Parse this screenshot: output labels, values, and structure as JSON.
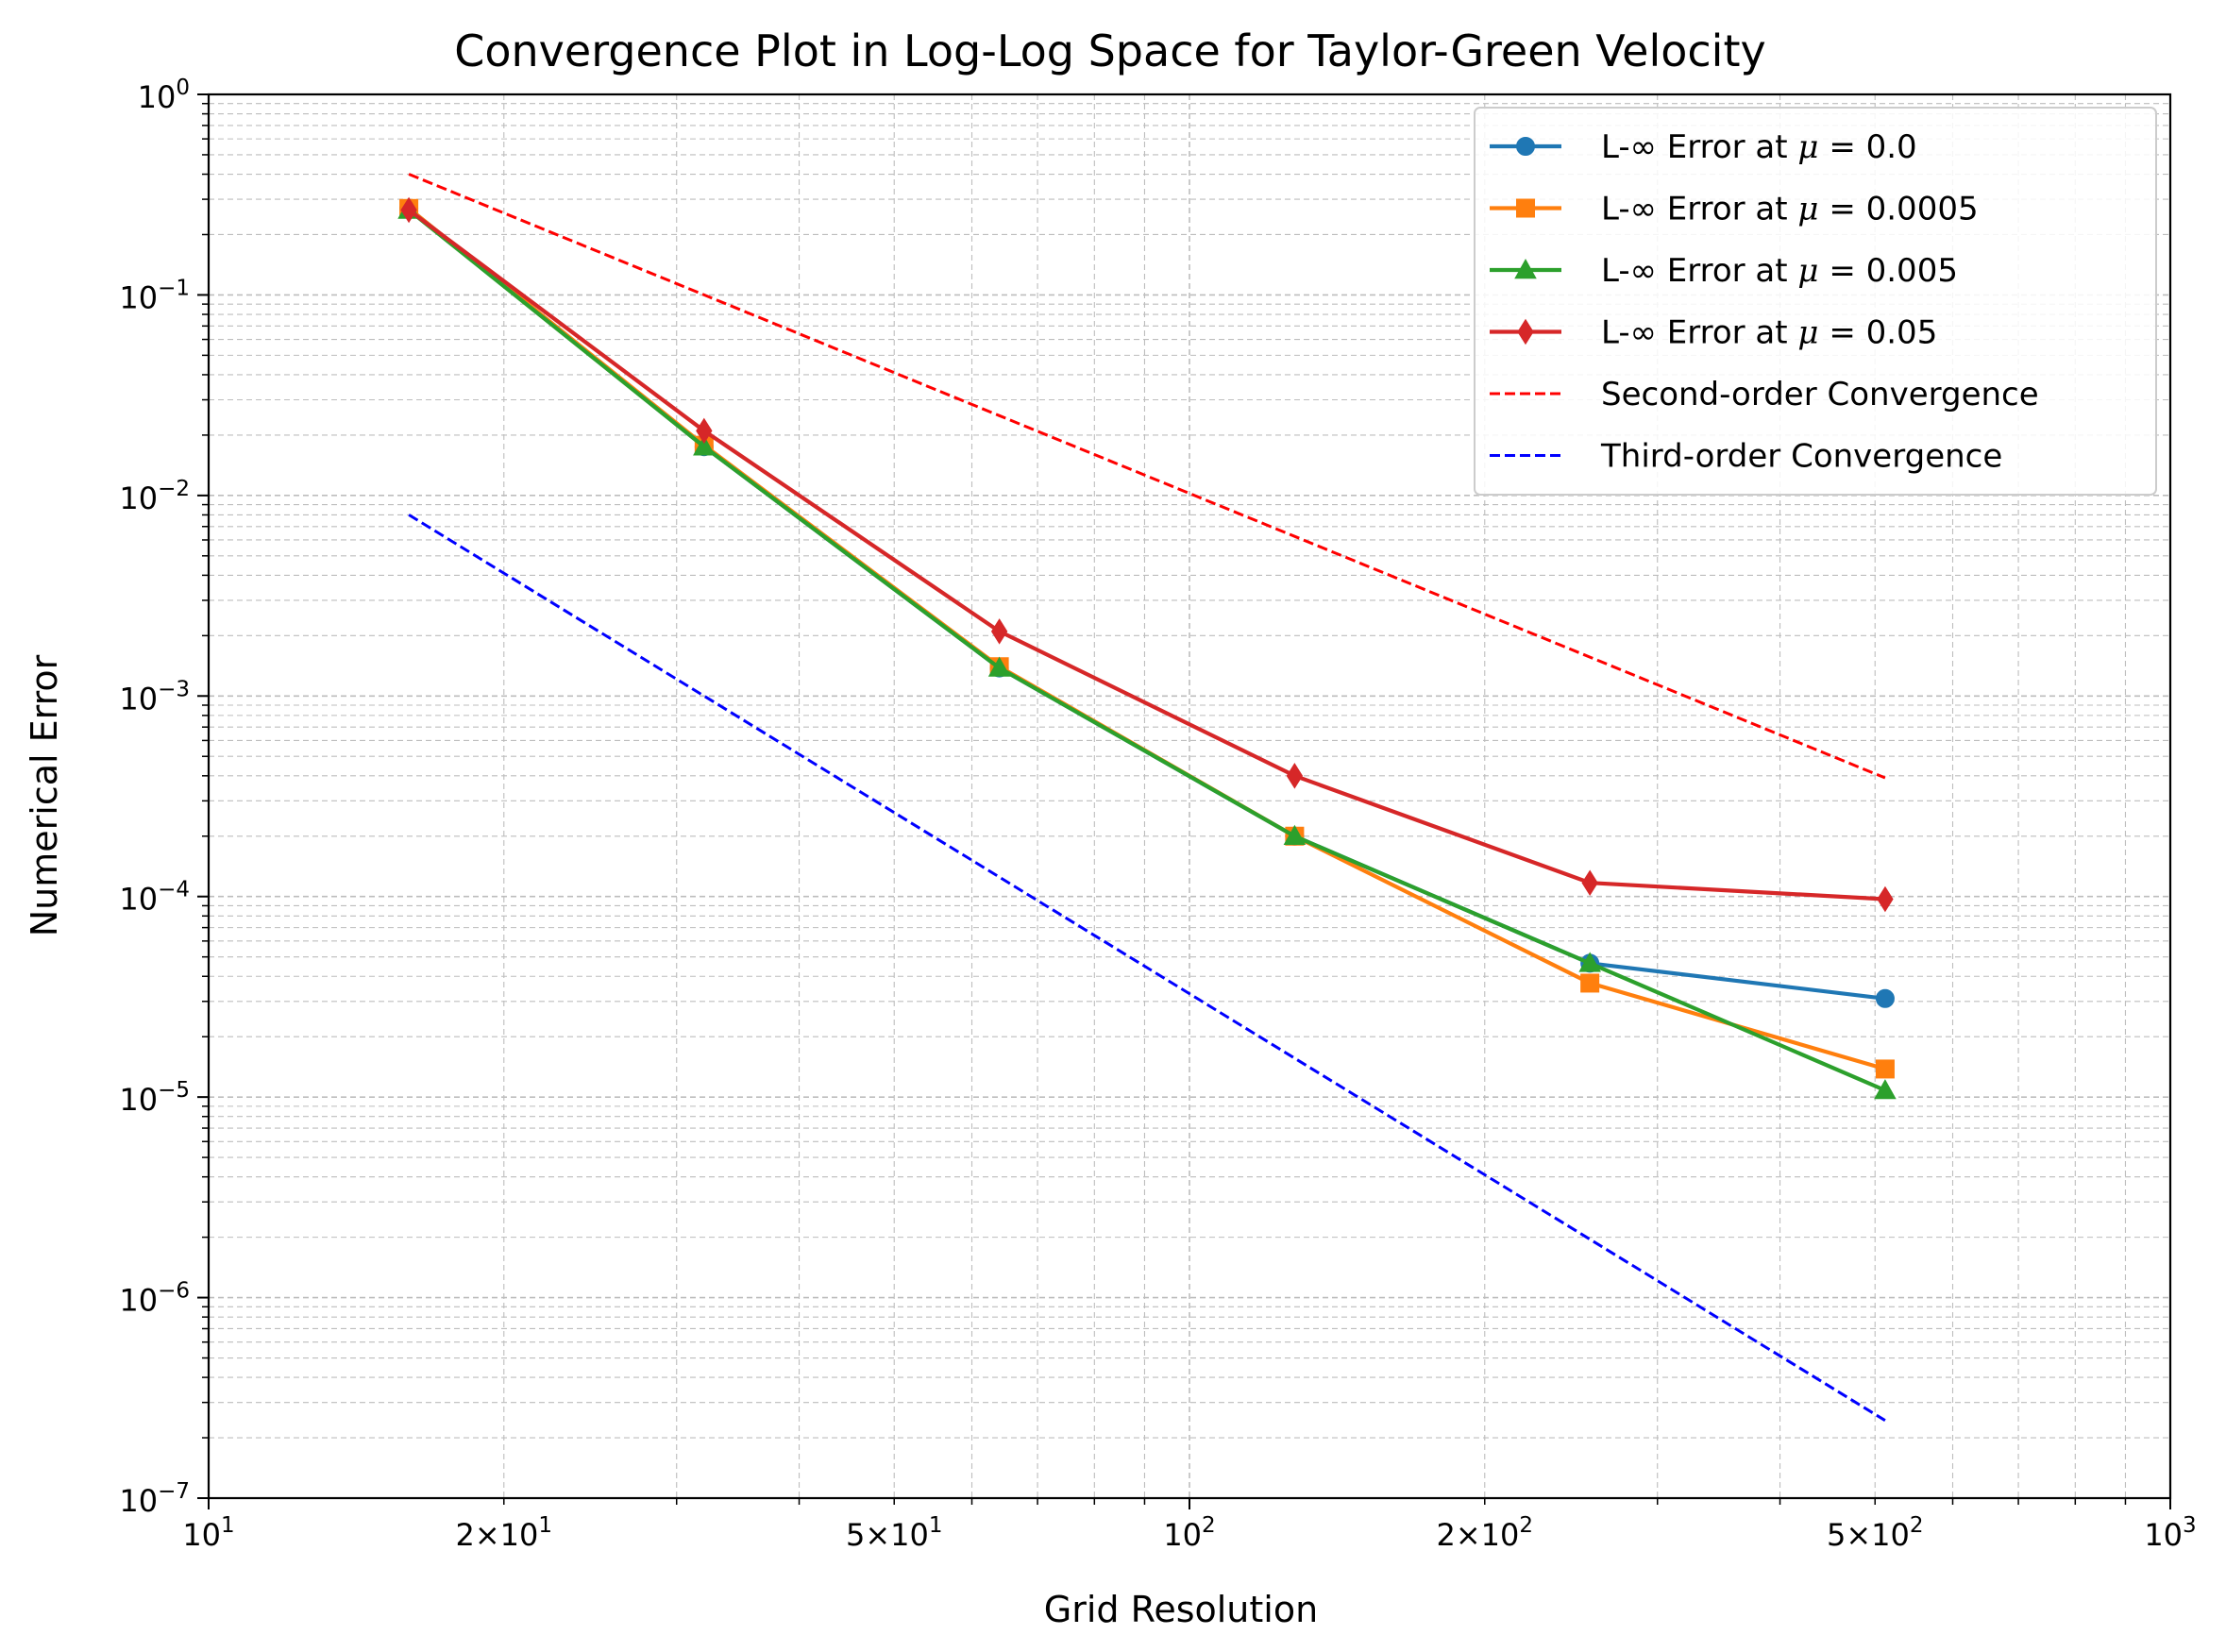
{
  "chart_data": {
    "type": "line",
    "title": "Convergence Plot in Log-Log Space for Taylor-Green Velocity",
    "xlabel": "Grid Resolution",
    "ylabel": "Numerical Error",
    "xscale": "log",
    "yscale": "log",
    "xlim": [
      10,
      1000
    ],
    "ylim": [
      1e-07,
      1
    ],
    "grid": true,
    "legend_position": "upper right",
    "x_tick_labels": [
      {
        "v": 10,
        "base": "10",
        "exp": "1",
        "mant": ""
      },
      {
        "v": 20,
        "base": "10",
        "exp": "1",
        "mant": "2×"
      },
      {
        "v": 50,
        "base": "10",
        "exp": "1",
        "mant": "5×"
      },
      {
        "v": 100,
        "base": "10",
        "exp": "2",
        "mant": ""
      },
      {
        "v": 200,
        "base": "10",
        "exp": "2",
        "mant": "2×"
      },
      {
        "v": 500,
        "base": "10",
        "exp": "2",
        "mant": "5×"
      },
      {
        "v": 1000,
        "base": "10",
        "exp": "3",
        "mant": ""
      }
    ],
    "y_tick_labels": [
      {
        "v": 1,
        "base": "10",
        "exp": "0"
      },
      {
        "v": 0.1,
        "base": "10",
        "exp": "−1"
      },
      {
        "v": 0.01,
        "base": "10",
        "exp": "−2"
      },
      {
        "v": 0.001,
        "base": "10",
        "exp": "−3"
      },
      {
        "v": 0.0001,
        "base": "10",
        "exp": "−4"
      },
      {
        "v": 1e-05,
        "base": "10",
        "exp": "−5"
      },
      {
        "v": 1e-06,
        "base": "10",
        "exp": "−6"
      },
      {
        "v": 1e-07,
        "base": "10",
        "exp": "−7"
      }
    ],
    "series": [
      {
        "name": "L-∞ Error at μ = 0.0",
        "label_prefix": "L-∞ Error at ",
        "mu": "μ",
        "label_suffix": " = 0.0",
        "color": "#1f77b4",
        "marker": "circle",
        "linestyle": "solid",
        "x": [
          16,
          32,
          64,
          128,
          256,
          512
        ],
        "y": [
          0.27,
          0.0175,
          0.00138,
          0.0002,
          4.65e-05,
          3.1e-05
        ]
      },
      {
        "name": "L-∞ Error at μ = 0.0005",
        "label_prefix": "L-∞ Error at ",
        "mu": "μ",
        "label_suffix": " = 0.0005",
        "color": "#ff7f0e",
        "marker": "square",
        "linestyle": "solid",
        "x": [
          16,
          32,
          64,
          128,
          256,
          512
        ],
        "y": [
          0.27,
          0.0178,
          0.0014,
          0.0002,
          3.7e-05,
          1.38e-05
        ]
      },
      {
        "name": "L-∞ Error at μ = 0.005",
        "label_prefix": "L-∞ Error at ",
        "mu": "μ",
        "label_suffix": " = 0.005",
        "color": "#2ca02c",
        "marker": "triangle",
        "linestyle": "solid",
        "x": [
          16,
          32,
          64,
          128,
          256,
          512
        ],
        "y": [
          0.265,
          0.0175,
          0.00138,
          0.0002,
          4.65e-05,
          1.08e-05
        ]
      },
      {
        "name": "L-∞ Error at μ = 0.05",
        "label_prefix": "L-∞ Error at ",
        "mu": "μ",
        "label_suffix": " = 0.05",
        "color": "#d62728",
        "marker": "diamond",
        "linestyle": "solid",
        "x": [
          16,
          32,
          64,
          128,
          256,
          512
        ],
        "y": [
          0.265,
          0.021,
          0.0021,
          0.0004,
          0.000117,
          9.7e-05
        ]
      },
      {
        "name": "Second-order Convergence",
        "label_prefix": "Second-order Convergence",
        "mu": "",
        "label_suffix": "",
        "color": "#ff0000",
        "marker": "none",
        "linestyle": "dashed",
        "x": [
          16,
          32,
          64,
          128,
          256,
          512
        ],
        "y": [
          0.4,
          0.1,
          0.025,
          0.00625,
          0.0015625,
          0.000390625
        ]
      },
      {
        "name": "Third-order Convergence",
        "label_prefix": "Third-order Convergence",
        "mu": "",
        "label_suffix": "",
        "color": "#0000ff",
        "marker": "none",
        "linestyle": "dashed",
        "x": [
          16,
          32,
          64,
          128,
          256,
          512
        ],
        "y": [
          0.008,
          0.001,
          0.000125,
          1.5625e-05,
          1.953125e-06,
          2.44140625e-07
        ]
      }
    ]
  }
}
